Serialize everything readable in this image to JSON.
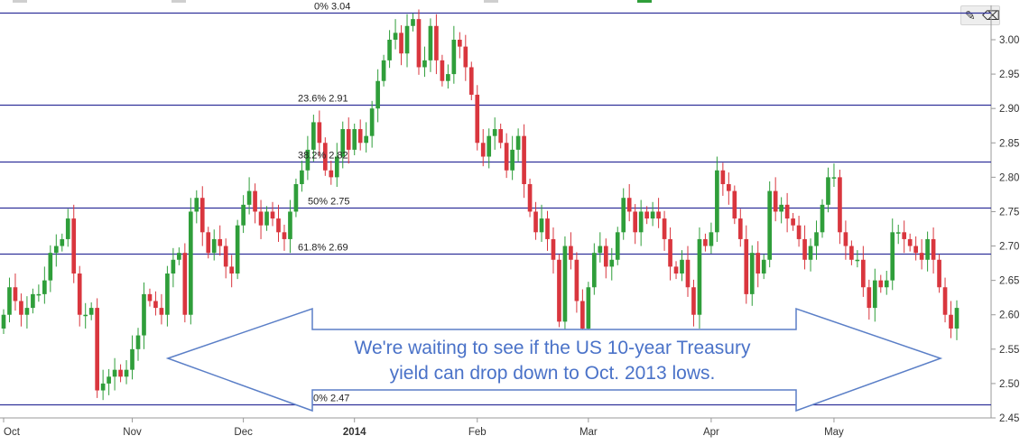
{
  "chart_data": {
    "type": "candlestick",
    "title": "",
    "xlabel": "",
    "ylabel": "",
    "ylim": [
      2.45,
      3.05
    ],
    "y_ticks": [
      "3.00",
      "2.95",
      "2.90",
      "2.85",
      "2.80",
      "2.75",
      "2.70",
      "2.65",
      "2.60",
      "2.55",
      "2.50",
      "2.45"
    ],
    "x_ticks": [
      {
        "label": "Oct",
        "bold": false,
        "bar_index": 0
      },
      {
        "label": "Nov",
        "bold": false,
        "bar_index": 22
      },
      {
        "label": "Dec",
        "bold": false,
        "bar_index": 41
      },
      {
        "label": "2014",
        "bold": true,
        "bar_index": 60
      },
      {
        "label": "Feb",
        "bold": false,
        "bar_index": 81
      },
      {
        "label": "Mar",
        "bold": false,
        "bar_index": 100
      },
      {
        "label": "Apr",
        "bold": false,
        "bar_index": 121
      },
      {
        "label": "May",
        "bold": false,
        "bar_index": 142
      }
    ],
    "grid": false,
    "fibonacci_levels": [
      {
        "label": "0% 3.04",
        "value": 3.04
      },
      {
        "label": "23.6% 2.91",
        "value": 2.905
      },
      {
        "label": "38.2% 2.82",
        "value": 2.823
      },
      {
        "label": "50% 2.75",
        "value": 2.756
      },
      {
        "label": "61.8% 2.69",
        "value": 2.689
      },
      {
        "label": "0% 2.47",
        "value": 2.47
      }
    ],
    "closes": [
      2.6,
      2.64,
      2.62,
      2.6,
      2.61,
      2.63,
      2.63,
      2.65,
      2.69,
      2.7,
      2.71,
      2.74,
      2.66,
      2.6,
      2.6,
      2.61,
      2.49,
      2.5,
      2.51,
      2.52,
      2.51,
      2.52,
      2.55,
      2.57,
      2.63,
      2.62,
      2.61,
      2.6,
      2.66,
      2.68,
      2.69,
      2.6,
      2.75,
      2.77,
      2.72,
      2.69,
      2.71,
      2.7,
      2.67,
      2.66,
      2.73,
      2.76,
      2.78,
      2.75,
      2.73,
      2.75,
      2.74,
      2.72,
      2.71,
      2.75,
      2.79,
      2.81,
      2.84,
      2.88,
      2.85,
      2.81,
      2.8,
      2.83,
      2.87,
      2.84,
      2.87,
      2.85,
      2.86,
      2.9,
      2.94,
      2.97,
      3.0,
      3.01,
      2.98,
      3.02,
      3.03,
      2.96,
      2.97,
      3.02,
      2.97,
      2.94,
      2.95,
      3.0,
      2.99,
      2.96,
      2.92,
      2.85,
      2.83,
      2.86,
      2.87,
      2.85,
      2.81,
      2.84,
      2.86,
      2.79,
      2.75,
      2.72,
      2.74,
      2.71,
      2.68,
      2.59,
      2.7,
      2.68,
      2.62,
      2.58,
      2.64,
      2.69,
      2.7,
      2.67,
      2.68,
      2.72,
      2.77,
      2.75,
      2.72,
      2.75,
      2.74,
      2.75,
      2.74,
      2.71,
      2.67,
      2.66,
      2.68,
      2.64,
      2.6,
      2.71,
      2.7,
      2.72,
      2.81,
      2.79,
      2.78,
      2.74,
      2.71,
      2.63,
      2.69,
      2.66,
      2.68,
      2.78,
      2.75,
      2.76,
      2.74,
      2.73,
      2.71,
      2.68,
      2.7,
      2.72,
      2.76,
      2.8,
      2.8,
      2.72,
      2.7,
      2.68,
      2.68,
      2.64,
      2.61,
      2.65,
      2.64,
      2.65,
      2.72,
      2.72,
      2.71,
      2.7,
      2.69,
      2.68,
      2.71,
      2.68,
      2.64,
      2.6,
      2.58,
      2.61
    ]
  },
  "annotation": {
    "line1": "We're waiting to see if the US 10-year Treasury",
    "line2": "yield can drop down to Oct. 2013 lows."
  },
  "colors": {
    "up": "#2f9e3a",
    "down": "#d9363e",
    "fib_line": "#31339b",
    "arrow_stroke": "#5b7fc7",
    "annotation_text": "#4a72c8",
    "axis_text": "#333333"
  },
  "toolbar": {
    "pencil_icon": "pencil-icon",
    "eraser_icon": "eraser-icon"
  }
}
